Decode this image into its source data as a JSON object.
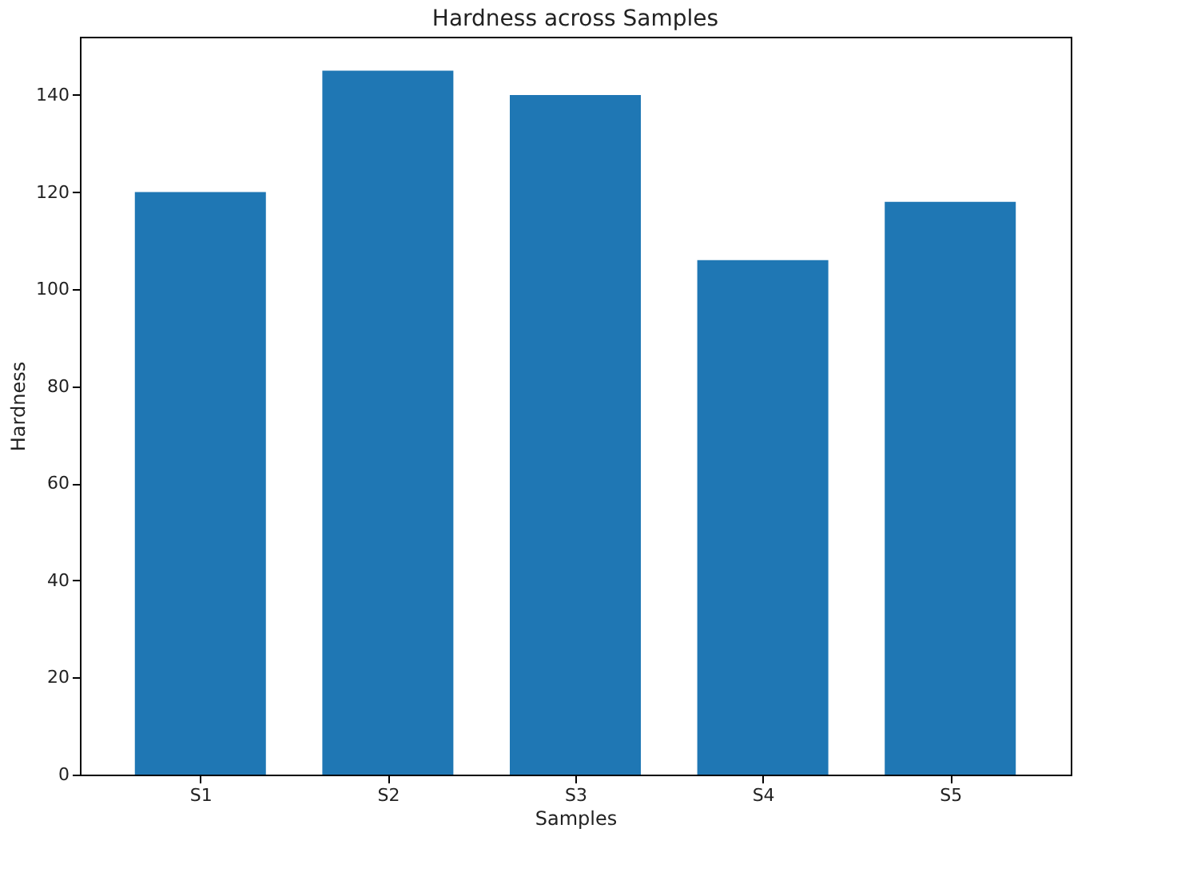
{
  "chart_data": {
    "type": "bar",
    "title": "Hardness across Samples",
    "xlabel": "Samples",
    "ylabel": "Hardness",
    "categories": [
      "S1",
      "S2",
      "S3",
      "S4",
      "S5"
    ],
    "values": [
      120,
      145,
      140,
      106,
      118
    ],
    "color": "#1f77b4",
    "ylim": [
      0,
      152
    ],
    "yticks": [
      0,
      20,
      40,
      60,
      80,
      100,
      120,
      140
    ],
    "grid": false
  }
}
